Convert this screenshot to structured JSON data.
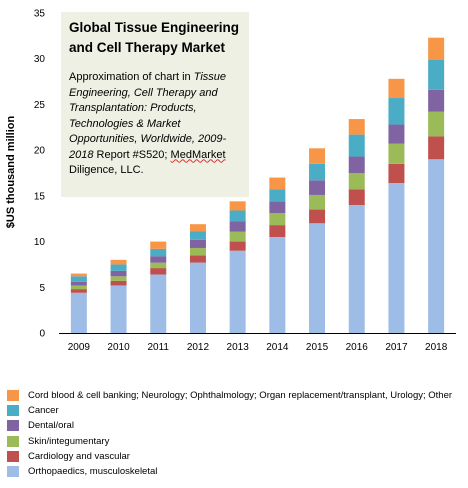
{
  "infobox": {
    "title": "Global Tissue Engineering and Cell Therapy Market",
    "body_prefix": "Approximation of chart in ",
    "body_italic": "Tissue Engineering, Cell Therapy and Transplantation: Products, Technologies & Market Opportunities, Worldwide, 2009-2018",
    "body_mid": " Report #S520; ",
    "body_squiggle": "MedMarket",
    "body_suffix": " Diligence, LLC."
  },
  "chart_data": {
    "type": "bar",
    "stacked": true,
    "ylabel": "$US thousand million",
    "xlabel": "",
    "ylim": [
      0,
      35
    ],
    "yticks": [
      0,
      5,
      10,
      15,
      20,
      25,
      30,
      35
    ],
    "grid": false,
    "legend_position": "bottom",
    "categories": [
      "2009",
      "2010",
      "2011",
      "2012",
      "2013",
      "2014",
      "2015",
      "2016",
      "2017",
      "2018"
    ],
    "series": [
      {
        "name": "Orthopaedics, musculoskeletal",
        "color": "#9dbde6",
        "values": [
          4.4,
          5.2,
          6.4,
          7.7,
          9.0,
          10.5,
          12.0,
          14.0,
          16.4,
          19.0
        ]
      },
      {
        "name": "Cardiology and vascular",
        "color": "#c0504d",
        "values": [
          0.4,
          0.5,
          0.7,
          0.8,
          1.0,
          1.3,
          1.5,
          1.7,
          2.1,
          2.5
        ]
      },
      {
        "name": "Skin/integumentary",
        "color": "#9bbb59",
        "values": [
          0.4,
          0.5,
          0.6,
          0.8,
          1.1,
          1.3,
          1.6,
          1.8,
          2.2,
          2.7
        ]
      },
      {
        "name": "Dental/oral",
        "color": "#8064a2",
        "values": [
          0.4,
          0.6,
          0.7,
          0.9,
          1.1,
          1.3,
          1.6,
          1.8,
          2.1,
          2.4
        ]
      },
      {
        "name": "Cancer",
        "color": "#4bacc6",
        "values": [
          0.6,
          0.7,
          0.8,
          0.9,
          1.2,
          1.3,
          1.8,
          2.4,
          2.9,
          3.3
        ]
      },
      {
        "name": "Cord blood & cell banking; Neurology; Ophthalmology; Organ replacement/transplant, Urology; Other",
        "color": "#f79646",
        "values": [
          0.3,
          0.5,
          0.8,
          0.8,
          1.0,
          1.3,
          1.7,
          1.7,
          2.1,
          2.4
        ]
      }
    ]
  }
}
